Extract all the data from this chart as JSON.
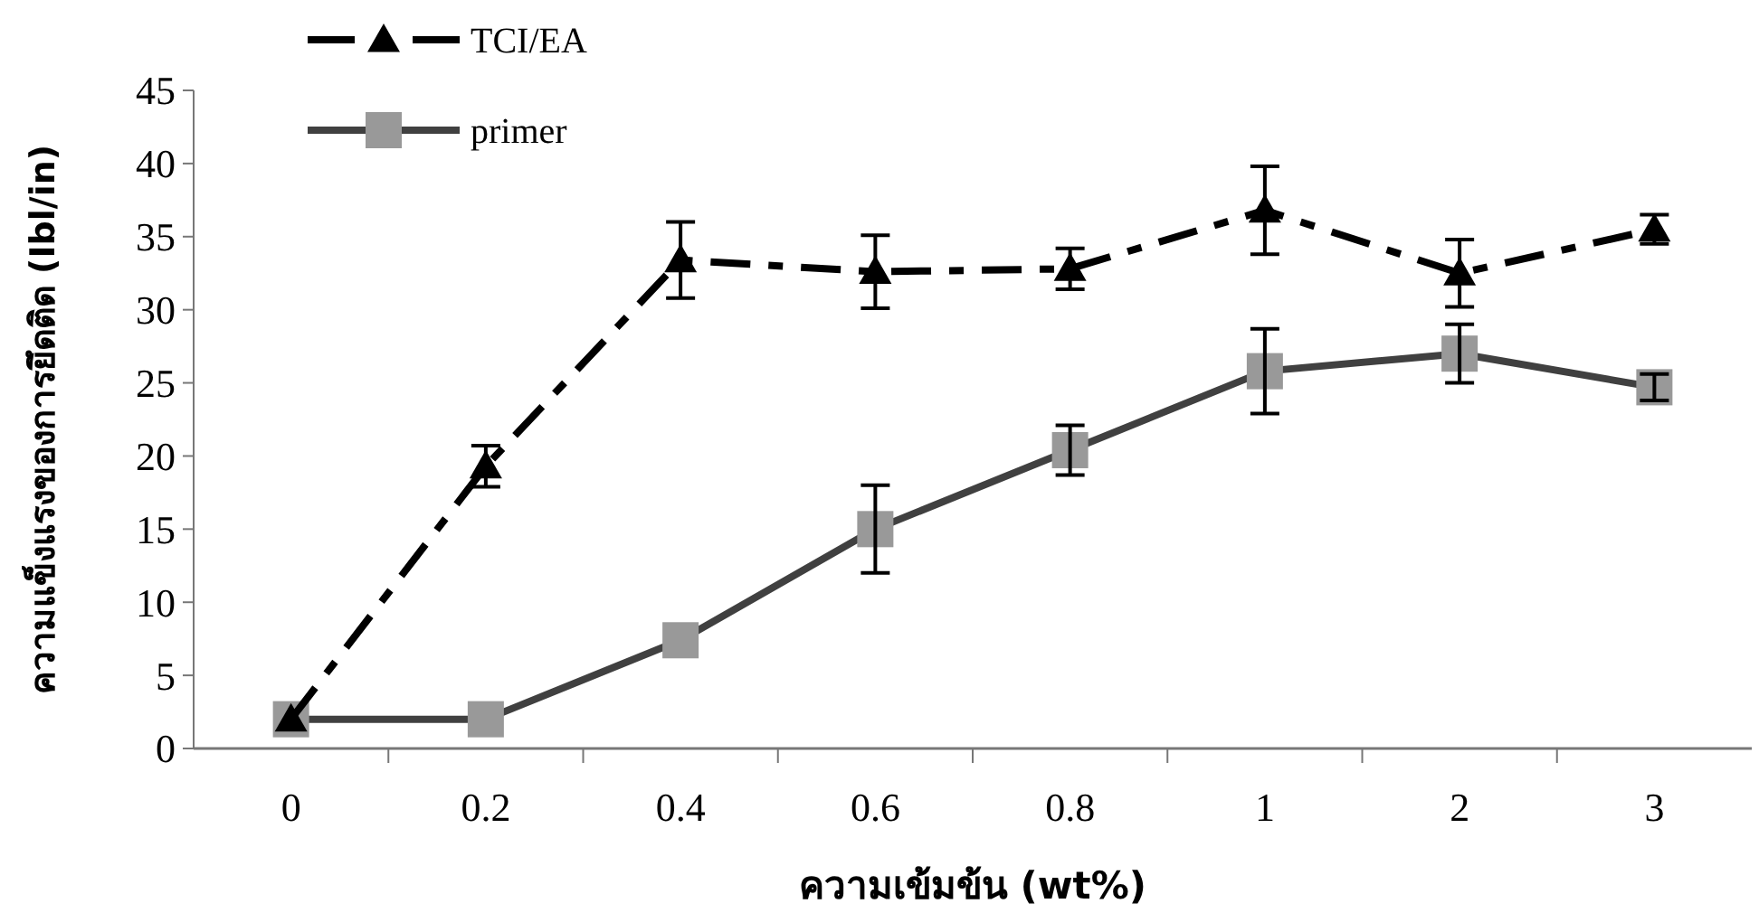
{
  "chart_data": {
    "type": "line",
    "xlabel": "ความเข้มข้น (wt%)",
    "ylabel": "ความแข็งแรงของการยึดติด (Ibl/in)",
    "categories": [
      "0",
      "0.2",
      "0.4",
      "0.6",
      "0.8",
      "1",
      "2",
      "3"
    ],
    "ylim": [
      0,
      45
    ],
    "yticks": [
      0,
      5,
      10,
      15,
      20,
      25,
      30,
      35,
      40,
      45
    ],
    "grid": false,
    "legend": "top left",
    "series": [
      {
        "name": "TCI/EA",
        "color": "#000000",
        "marker": "triangle",
        "line_style": "dashed",
        "values": [
          2,
          19.3,
          33.4,
          32.6,
          32.8,
          36.8,
          32.5,
          35.5
        ],
        "errors": [
          null,
          1.4,
          2.6,
          2.5,
          1.4,
          3,
          2.3,
          1
        ]
      },
      {
        "name": "primer",
        "color": "#404040",
        "marker": "square",
        "line_style": "solid",
        "values": [
          2,
          2,
          7.4,
          15,
          20.4,
          25.8,
          27,
          24.7
        ],
        "errors": [
          null,
          null,
          null,
          3,
          1.7,
          2.9,
          2,
          0.9
        ]
      }
    ]
  }
}
